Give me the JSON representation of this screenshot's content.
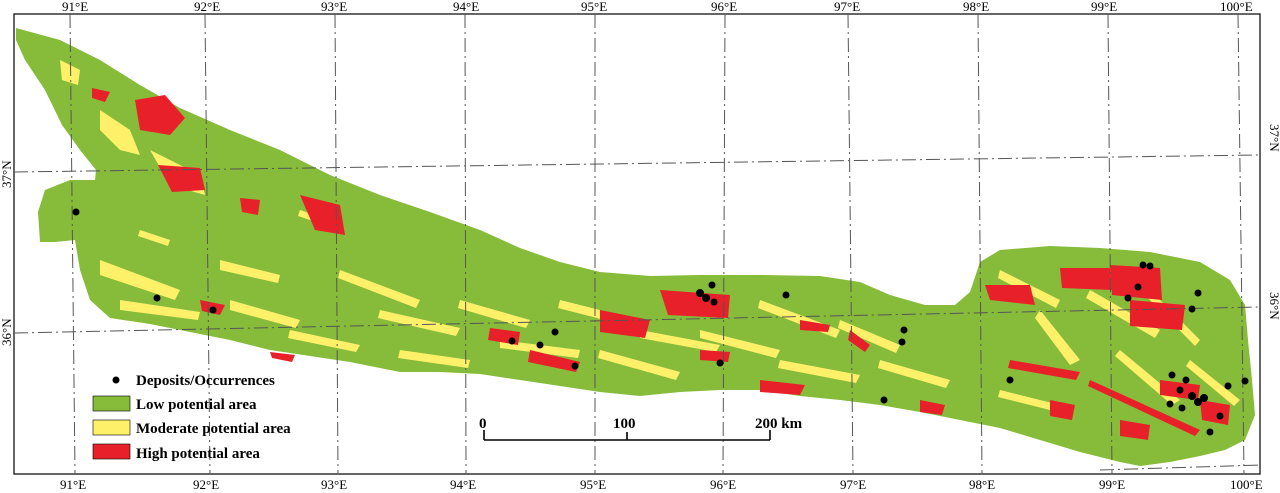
{
  "map": {
    "lon_labels_top": [
      "91°E",
      "92°E",
      "93°E",
      "94°E",
      "95°E",
      "96°E",
      "97°E",
      "98°E",
      "99°E",
      "100°E"
    ],
    "lon_labels_bottom": [
      "91°E",
      "92°E",
      "93°E",
      "94°E",
      "95°E",
      "96°E",
      "97°E",
      "98°E",
      "99°E",
      "100°E"
    ],
    "lat_labels_left": [
      "37°N",
      "36°N"
    ],
    "lat_labels_right": [
      "37°N",
      "36°N"
    ]
  },
  "legend": {
    "items": [
      {
        "label": "Deposits/Occurrences",
        "symbol": "dot",
        "color": "#000000"
      },
      {
        "label": "Low potential area",
        "symbol": "box",
        "color": "#86bc3a"
      },
      {
        "label": "Moderate potential area",
        "symbol": "box",
        "color": "#fff06a"
      },
      {
        "label": "High potential area",
        "symbol": "box",
        "color": "#e8202a"
      }
    ]
  },
  "scalebar": {
    "labels": [
      "0",
      "100",
      "200 km"
    ]
  },
  "colors": {
    "low": "#86bc3a",
    "moderate": "#fff06a",
    "high": "#e8202a",
    "deposit": "#000000",
    "grid": "#555555"
  }
}
